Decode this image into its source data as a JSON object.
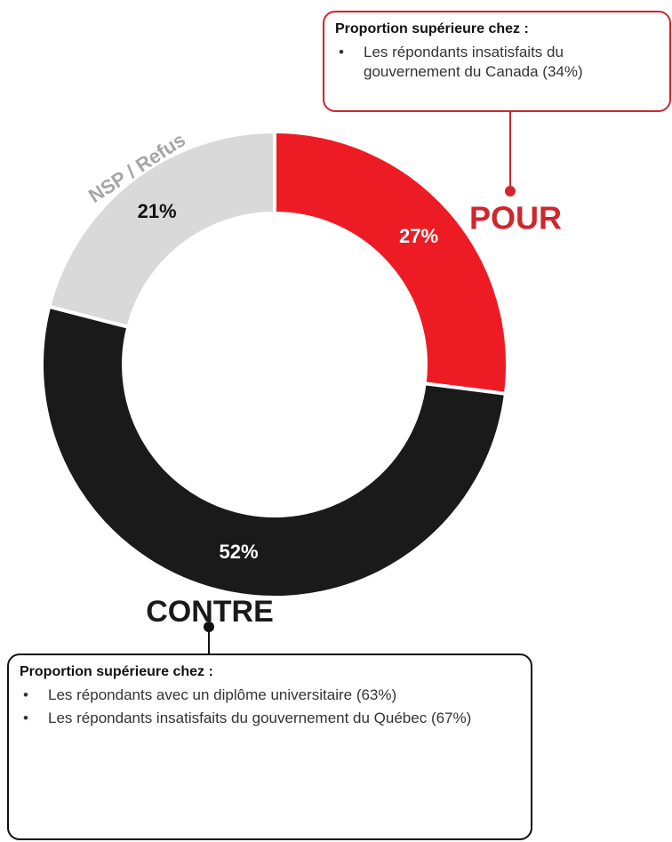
{
  "chart_data": {
    "type": "pie",
    "donut": true,
    "categories": [
      "POUR",
      "CONTRE",
      "NSP / Refus"
    ],
    "values": [
      27,
      52,
      21
    ],
    "value_labels": [
      "27%",
      "52%",
      "21%"
    ],
    "colors": [
      "#ed1c24",
      "#1a1a1a",
      "#d9d9d9"
    ],
    "annotations": [
      {
        "title": "Proportion supérieure chez :",
        "items": [
          "Les répondants insatisfaits du gouvernement du Canada (34%)"
        ]
      },
      {
        "title": "Proportion supérieure chez :",
        "items": [
          "Les répondants avec un diplôme universitaire (63%)",
          "Les répondants insatisfaits du gouvernement du Québec (67%)"
        ]
      }
    ]
  }
}
